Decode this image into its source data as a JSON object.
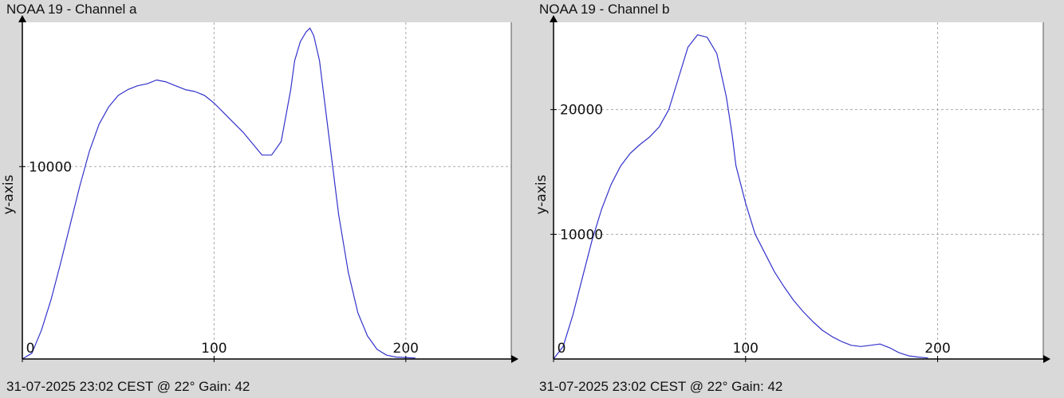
{
  "colors": {
    "background": "#d9d9d9",
    "plot_area": "#ffffff",
    "grid": "#aaaaaa",
    "series": "#3333cc",
    "axis": "#000000"
  },
  "chart_data": [
    {
      "type": "line",
      "title": "NOAA 19 - Channel a",
      "footer": "31-07-2025 23:02 CEST @ 22° Gain: 42",
      "xlabel": "",
      "ylabel": "y-axis",
      "xlim": [
        0,
        255
      ],
      "ylim": [
        0,
        17500
      ],
      "x_ticks": [
        0,
        100,
        200
      ],
      "y_ticks": [
        10000
      ],
      "grid": true,
      "legend": "none",
      "series": [
        {
          "x": [
            0,
            5,
            10,
            15,
            20,
            25,
            30,
            35,
            40,
            45,
            50,
            55,
            60,
            65,
            70,
            75,
            80,
            85,
            90,
            95,
            100,
            105,
            110,
            115,
            120,
            125,
            130,
            135,
            140,
            142,
            145,
            148,
            150,
            152,
            155,
            160,
            165,
            170,
            175,
            180,
            185,
            190,
            195,
            200,
            205
          ],
          "y": [
            0,
            300,
            1500,
            3100,
            5000,
            7000,
            9000,
            10800,
            12200,
            13100,
            13700,
            14000,
            14200,
            14300,
            14500,
            14400,
            14200,
            14000,
            13900,
            13700,
            13300,
            12800,
            12300,
            11800,
            11200,
            10600,
            10600,
            11300,
            14000,
            15500,
            16500,
            17000,
            17200,
            16800,
            15500,
            11500,
            7500,
            4500,
            2400,
            1200,
            500,
            200,
            100,
            80,
            50
          ]
        }
      ]
    },
    {
      "type": "line",
      "title": "NOAA 19 - Channel b",
      "footer": "31-07-2025 23:02 CEST @ 22° Gain: 42",
      "xlabel": "",
      "ylabel": "y-axis",
      "xlim": [
        0,
        255
      ],
      "ylim": [
        0,
        27000
      ],
      "x_ticks": [
        0,
        100,
        200
      ],
      "y_ticks": [
        10000,
        20000
      ],
      "grid": true,
      "legend": "none",
      "series": [
        {
          "x": [
            0,
            5,
            10,
            15,
            20,
            25,
            30,
            35,
            40,
            45,
            50,
            55,
            60,
            65,
            70,
            75,
            80,
            85,
            90,
            93,
            95,
            100,
            105,
            110,
            115,
            120,
            125,
            130,
            135,
            140,
            145,
            150,
            155,
            160,
            165,
            170,
            175,
            180,
            185,
            190,
            195
          ],
          "y": [
            0,
            1000,
            3500,
            6500,
            9500,
            12000,
            14000,
            15500,
            16500,
            17200,
            17800,
            18600,
            20000,
            22500,
            25000,
            26000,
            25800,
            24500,
            21000,
            18000,
            15500,
            12500,
            10000,
            8500,
            7000,
            5800,
            4700,
            3800,
            3000,
            2300,
            1800,
            1400,
            1100,
            1000,
            1100,
            1200,
            900,
            500,
            250,
            150,
            80
          ]
        }
      ]
    }
  ]
}
